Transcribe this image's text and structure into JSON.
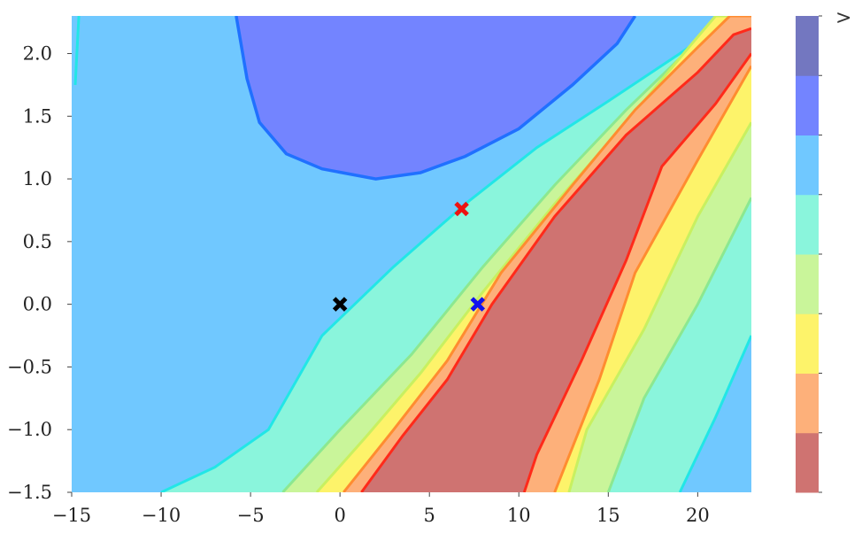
{
  "chart_data": {
    "type": "contour",
    "title": "",
    "xlabel": "",
    "ylabel": "",
    "xlim": [
      -15,
      23
    ],
    "ylim": [
      -1.5,
      2.3
    ],
    "x_ticks": [
      {
        "value": -15,
        "label": "−15"
      },
      {
        "value": -10,
        "label": "−10"
      },
      {
        "value": -5,
        "label": "−5"
      },
      {
        "value": 0,
        "label": "0"
      },
      {
        "value": 5,
        "label": "5"
      },
      {
        "value": 10,
        "label": "10"
      },
      {
        "value": 15,
        "label": "15"
      },
      {
        "value": 20,
        "label": "20"
      }
    ],
    "y_ticks": [
      {
        "value": 2.0,
        "label": "2.0"
      },
      {
        "value": 1.5,
        "label": "1.5"
      },
      {
        "value": 1.0,
        "label": "1.0"
      },
      {
        "value": 0.5,
        "label": "0.5"
      },
      {
        "value": 0.0,
        "label": "0.0"
      },
      {
        "value": -0.5,
        "label": "−0.5"
      },
      {
        "value": -1.0,
        "label": "−1.0"
      },
      {
        "value": -1.5,
        "label": "−1.5"
      }
    ],
    "grid": false,
    "background_level_color": "#70c8ff",
    "regions": [
      {
        "level": 5,
        "fill": "#8af5dc",
        "line": "#22e6e6",
        "upper": [
          [
            -10,
            -1.5
          ],
          [
            -7,
            -1.3
          ],
          [
            -4,
            -1.0
          ],
          [
            -1,
            -0.25
          ],
          [
            3,
            0.3
          ],
          [
            7,
            0.8
          ],
          [
            11,
            1.25
          ],
          [
            15,
            1.62
          ],
          [
            19,
            2.0
          ],
          [
            22,
            2.3
          ],
          [
            23,
            2.3
          ]
        ],
        "lower": [
          [
            23,
            -0.25
          ],
          [
            21,
            -0.9
          ],
          [
            19,
            -1.5
          ]
        ]
      },
      {
        "level": 4,
        "fill": "#c9f59a",
        "line": "#8ce890",
        "upper": [
          [
            -3.2,
            -1.5
          ],
          [
            0,
            -1.0
          ],
          [
            4,
            -0.4
          ],
          [
            8,
            0.3
          ],
          [
            12,
            0.95
          ],
          [
            16,
            1.55
          ],
          [
            20,
            2.1
          ],
          [
            21,
            2.3
          ],
          [
            23,
            2.3
          ]
        ],
        "lower": [
          [
            23,
            0.85
          ],
          [
            20,
            0.0
          ],
          [
            17,
            -0.75
          ],
          [
            15,
            -1.5
          ]
        ]
      },
      {
        "level": 3,
        "fill": "#fdf36a",
        "line": "#c8f060",
        "upper": [
          [
            -1.3,
            -1.5
          ],
          [
            1.5,
            -1.05
          ],
          [
            4.5,
            -0.55
          ],
          [
            8,
            0.1
          ],
          [
            12,
            0.8
          ],
          [
            16,
            1.45
          ],
          [
            19.5,
            2.05
          ],
          [
            21,
            2.3
          ],
          [
            23,
            2.3
          ]
        ],
        "lower": [
          [
            23,
            1.45
          ],
          [
            20,
            0.7
          ],
          [
            17,
            -0.2
          ],
          [
            13.8,
            -1.0
          ],
          [
            12.8,
            -1.5
          ]
        ]
      },
      {
        "level": 2,
        "fill": "#fdb07a",
        "line": "#ff8c30",
        "upper": [
          [
            0.2,
            -1.5
          ],
          [
            3,
            -1.0
          ],
          [
            6,
            -0.45
          ],
          [
            9,
            0.25
          ],
          [
            13,
            0.95
          ],
          [
            16.5,
            1.55
          ],
          [
            20,
            2.05
          ],
          [
            21.8,
            2.3
          ],
          [
            23,
            2.3
          ]
        ],
        "lower": [
          [
            23,
            1.9
          ],
          [
            20,
            1.15
          ],
          [
            16.5,
            0.25
          ],
          [
            14.5,
            -0.6
          ],
          [
            12,
            -1.5
          ]
        ]
      },
      {
        "level": 1,
        "fill": "#cf7371",
        "line": "#ff2a1a",
        "upper": [
          [
            1.2,
            -1.5
          ],
          [
            3.5,
            -1.05
          ],
          [
            6,
            -0.6
          ],
          [
            8.5,
            0.0
          ],
          [
            12,
            0.7
          ],
          [
            16,
            1.35
          ],
          [
            20,
            1.85
          ],
          [
            22,
            2.15
          ],
          [
            23,
            2.2
          ]
        ],
        "lower": [
          [
            23,
            2.0
          ],
          [
            21,
            1.6
          ],
          [
            18,
            1.1
          ],
          [
            16,
            0.35
          ],
          [
            13.5,
            -0.45
          ],
          [
            11,
            -1.2
          ],
          [
            10.3,
            -1.5
          ]
        ]
      },
      {
        "level": 7,
        "fill": "#7384ff",
        "line": "#2070ff",
        "top_arc": [
          [
            -5.8,
            2.3
          ],
          [
            -5.2,
            1.8
          ],
          [
            -4.5,
            1.45
          ],
          [
            -3,
            1.2
          ],
          [
            -1,
            1.08
          ],
          [
            2,
            1.0
          ],
          [
            4.5,
            1.05
          ],
          [
            7,
            1.18
          ],
          [
            10,
            1.4
          ],
          [
            13,
            1.75
          ],
          [
            15.5,
            2.08
          ],
          [
            16.5,
            2.3
          ]
        ]
      }
    ],
    "contour_lines": [
      {
        "color": "#22e6e6",
        "points": [
          [
            -14.8,
            1.75
          ],
          [
            -14.6,
            2.3
          ]
        ]
      }
    ],
    "markers": [
      {
        "x": 0.0,
        "y": 0.0,
        "color": "#000000",
        "shape": "x"
      },
      {
        "x": 6.8,
        "y": 0.76,
        "color": "#ee1111",
        "shape": "x"
      },
      {
        "x": 7.7,
        "y": 0.0,
        "color": "#1111ee",
        "shape": "x"
      }
    ],
    "colorbar": {
      "label_top": ">",
      "colors": [
        "#cf7371",
        "#fdb07a",
        "#fdf36a",
        "#c9f59a",
        "#8af5dc",
        "#70c8ff",
        "#7384ff",
        "#7377c0"
      ]
    }
  }
}
